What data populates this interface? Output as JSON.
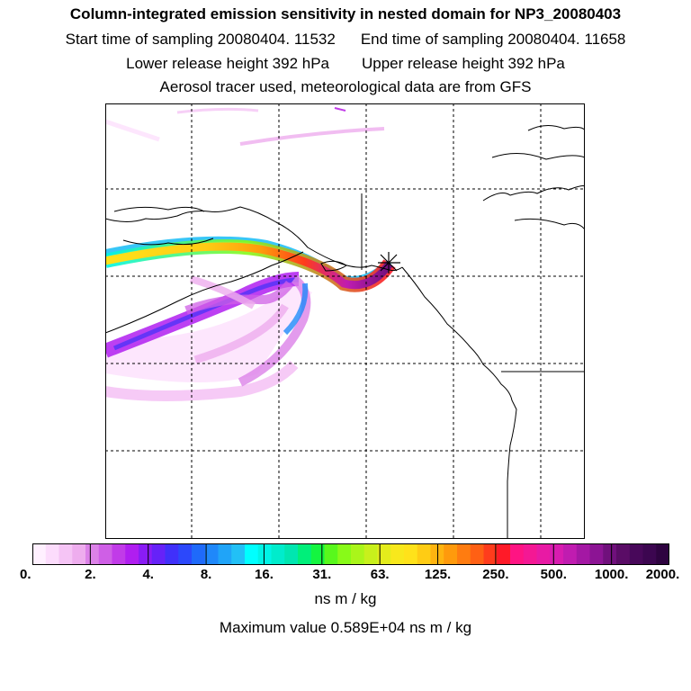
{
  "header": {
    "title": "Column-integrated emission sensitivity in nested domain for NP3_20080403",
    "start_label": "Start time of sampling 20080404. 11532",
    "end_label": "End time of sampling 20080404. 11658",
    "lower_label": "Lower release height  392 hPa",
    "upper_label": "Upper release height  392 hPa",
    "tracer_label": "Aerosol tracer used, meteorological data are from GFS"
  },
  "map": {
    "grid_lines": "dashed",
    "release_marker": "star-asterisk",
    "background": "#ffffff",
    "coastline_color": "#000000"
  },
  "legend": {
    "tick_labels": [
      "0.",
      "2.",
      "4.",
      "8.",
      "16.",
      "31.",
      "63.",
      "125.",
      "250.",
      "500.",
      "1000.",
      "2000."
    ],
    "units": "ns m / kg",
    "max_value_text": "Maximum value  0.589E+04 ns m / kg",
    "colors": [
      "#fff0ff",
      "#fcdcfc",
      "#f5c4f5",
      "#eeadee",
      "#dc82e8",
      "#cf5fe6",
      "#c13be8",
      "#b01ef0",
      "#8a1cf5",
      "#6622f8",
      "#4030fa",
      "#2c48fb",
      "#1f6afa",
      "#1f88fa",
      "#20a4f8",
      "#22c0f6",
      "#00ffff",
      "#00f4e6",
      "#00eccc",
      "#00e6b0",
      "#00ef7a",
      "#14f540",
      "#58f81c",
      "#88fa18",
      "#aaf51a",
      "#c8f01c",
      "#e4ec1c",
      "#f8e81c",
      "#ffe21a",
      "#ffcc14",
      "#ffb410",
      "#ff9a0c",
      "#ff7c10",
      "#ff6014",
      "#ff3c1c",
      "#ff1a28",
      "#ff1483",
      "#f41894",
      "#e81aa4",
      "#d81cb0",
      "#c01cb0",
      "#a418a4",
      "#8c1494",
      "#70107c",
      "#5a0c66",
      "#48085a",
      "#3c0650",
      "#2e0340"
    ]
  }
}
